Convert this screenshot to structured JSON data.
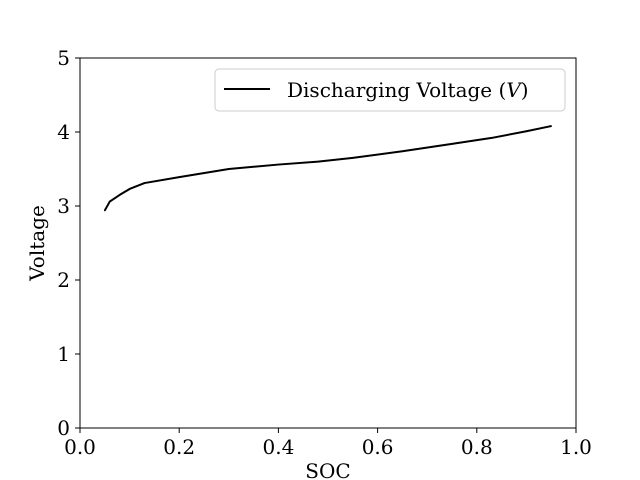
{
  "chart_data": {
    "type": "line",
    "title": "",
    "xlabel": "SOC",
    "ylabel": "Voltage",
    "xlim": [
      0.0,
      1.0
    ],
    "ylim": [
      0,
      5
    ],
    "xticks": [
      "0.0",
      "0.2",
      "0.4",
      "0.6",
      "0.8",
      "1.0"
    ],
    "yticks": [
      "0",
      "1",
      "2",
      "3",
      "4",
      "5"
    ],
    "grid": false,
    "legend_position": "top-right",
    "series": [
      {
        "name": "Discharging Voltage (V)",
        "color": "#000000",
        "x": [
          0.05,
          0.06,
          0.08,
          0.1,
          0.13,
          0.2,
          0.3,
          0.4,
          0.48,
          0.55,
          0.65,
          0.75,
          0.83,
          0.9,
          0.95
        ],
        "y": [
          2.94,
          3.06,
          3.15,
          3.23,
          3.31,
          3.39,
          3.5,
          3.56,
          3.6,
          3.65,
          3.74,
          3.84,
          3.92,
          4.01,
          4.08
        ]
      }
    ]
  },
  "legend": {
    "label_prefix": "Discharging Voltage (",
    "label_var": "V",
    "label_suffix": ")"
  }
}
